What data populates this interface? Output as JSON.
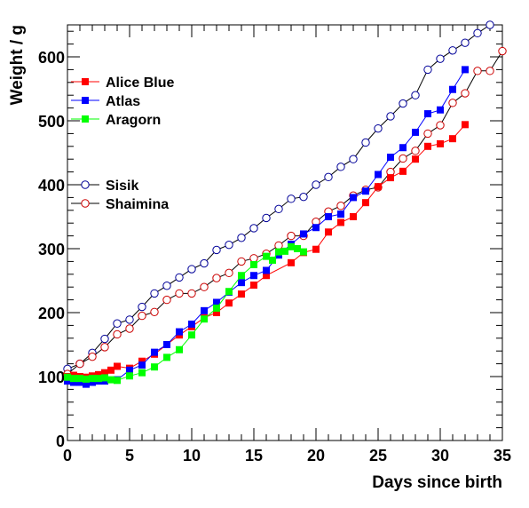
{
  "chart_data": {
    "type": "scatter",
    "title": "",
    "xlabel": "Days since birth",
    "ylabel": "Weight / g",
    "xlim": [
      0,
      35
    ],
    "ylim": [
      0,
      650
    ],
    "x_ticks": [
      0,
      5,
      10,
      15,
      20,
      25,
      30,
      35
    ],
    "y_ticks": [
      0,
      100,
      200,
      300,
      400,
      500,
      600
    ],
    "grid": false,
    "legend_position": "top-left",
    "series": [
      {
        "name": "Alice Blue",
        "color": "#ff0000",
        "marker": "filled-square",
        "x": [
          0,
          0.5,
          1,
          1.5,
          2,
          2.5,
          3,
          3.5,
          4,
          5,
          6,
          7,
          8,
          9,
          10,
          11,
          12,
          13,
          14,
          15,
          16,
          18,
          19,
          20,
          21,
          22,
          23,
          24,
          25,
          26,
          27,
          28,
          29,
          30,
          31,
          32
        ],
        "y": [
          100,
          102,
          100,
          99,
          101,
          103,
          106,
          110,
          116,
          113,
          124,
          135,
          150,
          165,
          178,
          192,
          200,
          215,
          229,
          243,
          258,
          278,
          294,
          299,
          326,
          341,
          350,
          372,
          397,
          411,
          421,
          440,
          460,
          464,
          472,
          494
        ]
      },
      {
        "name": "Atlas",
        "color": "#0000ff",
        "marker": "filled-square",
        "x": [
          0,
          0.5,
          1,
          1.5,
          2,
          2.5,
          3,
          4,
          5,
          6,
          7,
          8,
          9,
          10,
          11,
          12,
          13,
          14,
          15,
          16,
          17,
          18,
          19,
          20,
          21,
          22,
          23,
          24,
          25,
          26,
          27,
          28,
          29,
          30,
          31,
          32
        ],
        "y": [
          93,
          91,
          91,
          88,
          91,
          93,
          93,
          95,
          110,
          118,
          138,
          150,
          170,
          182,
          203,
          216,
          232,
          247,
          258,
          266,
          290,
          307,
          323,
          333,
          350,
          354,
          380,
          390,
          416,
          443,
          458,
          482,
          511,
          517,
          549,
          580
        ]
      },
      {
        "name": "Aragorn",
        "color": "#00ff00",
        "marker": "filled-square",
        "x": [
          0,
          0.5,
          1,
          1.5,
          2,
          2.5,
          3,
          3.5,
          4,
          5,
          6,
          7,
          8,
          9,
          10,
          11,
          12,
          13,
          14,
          15,
          16,
          16.5,
          17,
          17.5,
          18,
          18.5,
          19
        ],
        "y": [
          99,
          97,
          97,
          96,
          97,
          97,
          98,
          95,
          94,
          101,
          106,
          115,
          130,
          142,
          165,
          190,
          207,
          233,
          258,
          275,
          288,
          282,
          295,
          296,
          303,
          300,
          295
        ]
      },
      {
        "name": "Sisik",
        "color": "#000099",
        "marker": "open-circle",
        "x": [
          0,
          1,
          2,
          3,
          4,
          5,
          6,
          7,
          8,
          9,
          10,
          11,
          12,
          13,
          14,
          15,
          16,
          17,
          18,
          19,
          20,
          21,
          22,
          23,
          24,
          25,
          26,
          27,
          28,
          29,
          30,
          31,
          32,
          33,
          34
        ],
        "y": [
          112,
          120,
          137,
          159,
          183,
          189,
          209,
          230,
          242,
          255,
          268,
          277,
          298,
          306,
          317,
          332,
          348,
          362,
          378,
          381,
          400,
          412,
          428,
          440,
          466,
          488,
          507,
          527,
          540,
          580,
          597,
          610,
          622,
          637,
          650
        ]
      },
      {
        "name": "Shaimina",
        "color": "#cc0000",
        "marker": "open-circle",
        "x": [
          0,
          1,
          2,
          3,
          4,
          5,
          6,
          7,
          8,
          9,
          10,
          11,
          12,
          13,
          14,
          15,
          16,
          17,
          18,
          19,
          20,
          21,
          22,
          23,
          24,
          25,
          26,
          27,
          28,
          29,
          30,
          31,
          32,
          33,
          34,
          35
        ],
        "y": [
          104,
          120,
          131,
          146,
          166,
          175,
          195,
          201,
          220,
          230,
          230,
          240,
          254,
          262,
          280,
          285,
          292,
          305,
          320,
          320,
          342,
          358,
          367,
          383,
          392,
          396,
          420,
          441,
          453,
          480,
          493,
          528,
          543,
          578,
          578,
          609
        ]
      }
    ]
  }
}
